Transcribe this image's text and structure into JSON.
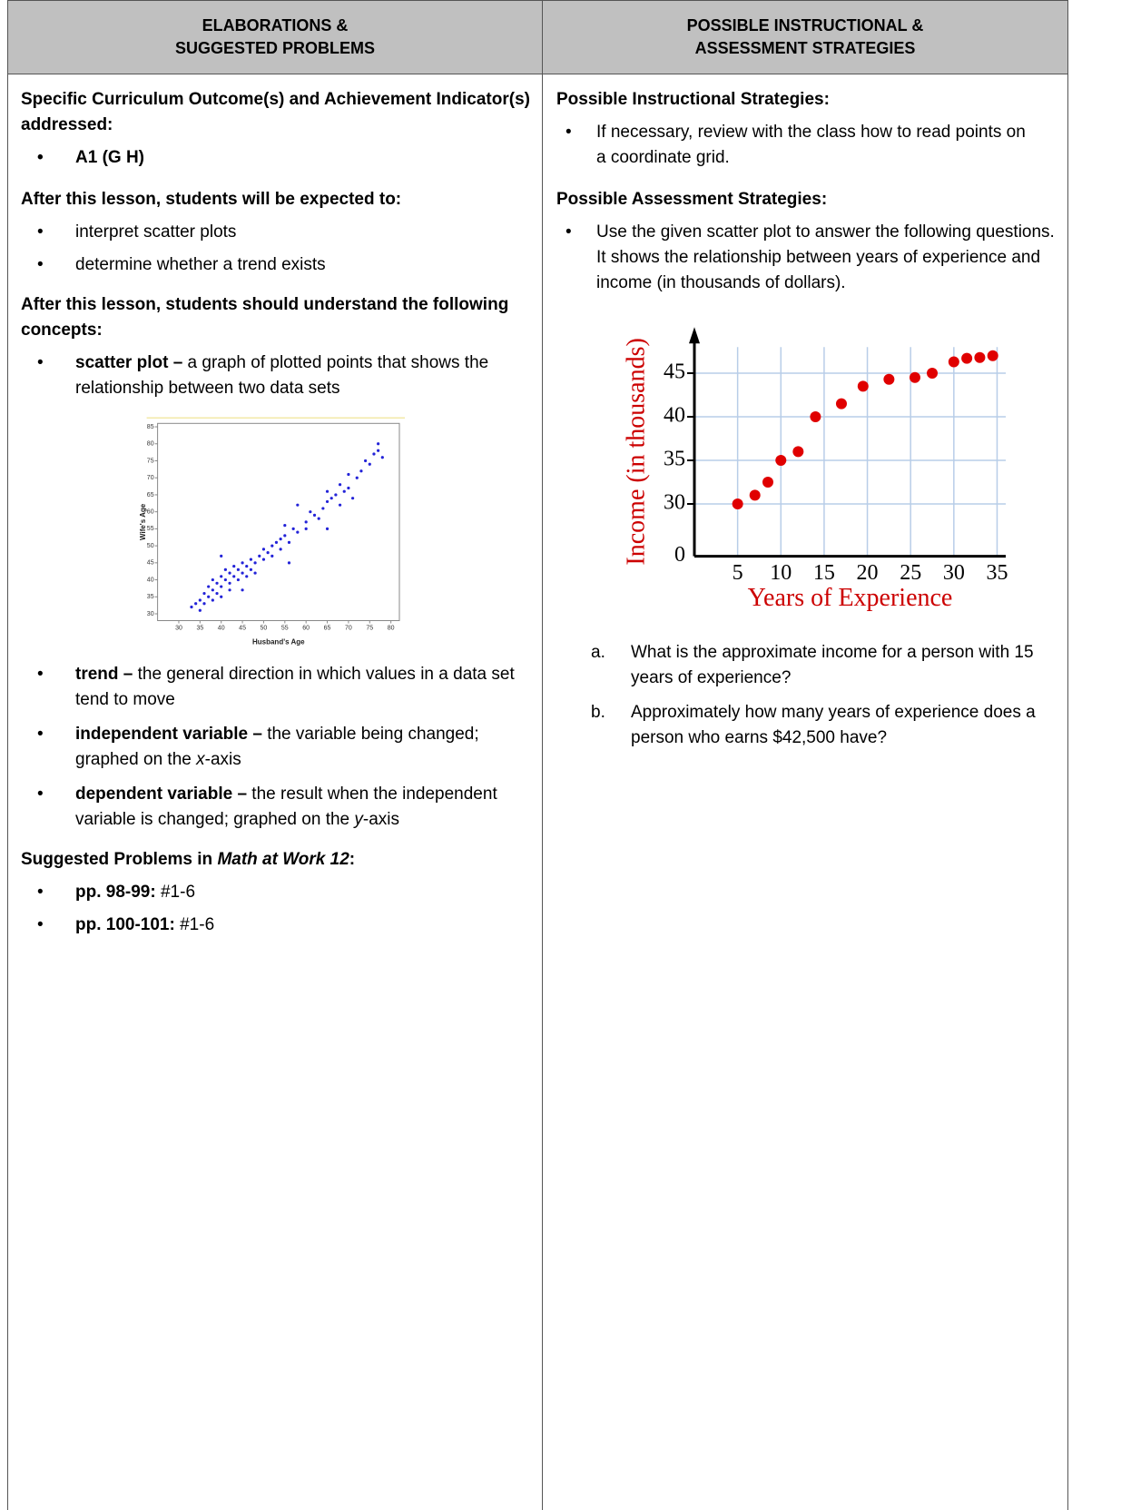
{
  "header": {
    "left": [
      "ELABORATIONS &",
      "SUGGESTED PROBLEMS"
    ],
    "right": [
      "POSSIBLE INSTRUCTIONAL &",
      "ASSESSMENT STRATEGIES"
    ]
  },
  "left": {
    "outcomes_heading": "Specific Curriculum Outcome(s) and Achievement Indicator(s) addressed:",
    "outcomes": [
      "A1  (G H)"
    ],
    "expected_heading": "After this lesson, students will be expected to:",
    "expected": [
      "interpret scatter plots",
      "determine whether a trend exists"
    ],
    "concepts_heading": "After this lesson, students should understand the following concepts:",
    "concepts": [
      {
        "term": "scatter plot –",
        "text": "a graph of plotted points that shows the relationship between two data sets"
      },
      {
        "term": "trend –",
        "text": "the general direction in which values in a data set tend to move"
      },
      {
        "term": "independent variable –",
        "text": "the variable being changed; graphed on the ",
        "em": "x",
        "rest": "-axis"
      },
      {
        "term": "dependent variable –",
        "text": "the result when the independent variable is changed; graphed on the ",
        "em": "y",
        "rest": "-axis"
      }
    ],
    "problems_heading": {
      "pre": "Suggested Problems in ",
      "book": "Math at Work 12",
      "post": ":"
    },
    "problems": [
      {
        "pages": "pp. 98-99:",
        "items": "#1-6"
      },
      {
        "pages": "pp. 100-101:",
        "items": "#1-6"
      }
    ]
  },
  "right": {
    "instructional_heading": "Possible Instructional Strategies:",
    "instructional": [
      "If necessary, review with the class how to read points on a coordinate grid."
    ],
    "assessment_heading": "Possible Assessment Strategies:",
    "assessment": [
      "Use the given scatter plot to answer the following questions.  It shows the relationship between years of experience and income (in thousands of dollars)."
    ],
    "questions": [
      {
        "letter": "a.",
        "text": "What is the approximate income for a person with 15 years of experience?"
      },
      {
        "letter": "b.",
        "text": "Approximately how many years of experience does a person who earns $42,500 have?"
      }
    ]
  },
  "chart_data": [
    {
      "type": "scatter",
      "x_label": "Husband's Age",
      "y_label": "Wife's Age",
      "color": "#2323d8",
      "x": [
        33,
        34,
        35,
        35,
        36,
        36,
        37,
        37,
        38,
        38,
        38,
        39,
        39,
        40,
        40,
        40,
        41,
        41,
        42,
        42,
        42,
        43,
        43,
        44,
        44,
        45,
        45,
        46,
        46,
        47,
        47,
        48,
        48,
        49,
        50,
        50,
        51,
        52,
        52,
        53,
        54,
        54,
        55,
        55,
        56,
        57,
        58,
        58,
        60,
        60,
        61,
        62,
        63,
        64,
        65,
        65,
        66,
        67,
        68,
        68,
        69,
        70,
        70,
        71,
        72,
        73,
        74,
        75,
        76,
        77,
        77,
        78,
        56,
        45,
        40,
        65
      ],
      "values": [
        32,
        33,
        31,
        34,
        33,
        36,
        35,
        38,
        34,
        37,
        40,
        36,
        39,
        38,
        41,
        35,
        40,
        43,
        39,
        42,
        37,
        41,
        44,
        40,
        43,
        42,
        45,
        44,
        41,
        43,
        46,
        45,
        42,
        47,
        46,
        49,
        48,
        50,
        47,
        51,
        52,
        49,
        53,
        56,
        51,
        55,
        62,
        54,
        57,
        55,
        60,
        59,
        58,
        61,
        63,
        66,
        64,
        65,
        62,
        68,
        66,
        67,
        71,
        64,
        70,
        72,
        75,
        74,
        77,
        80,
        78,
        76,
        45,
        37,
        47,
        55
      ],
      "xlim": [
        25,
        82
      ],
      "ylim": [
        28,
        86
      ],
      "xticks": [
        30,
        35,
        40,
        45,
        50,
        55,
        60,
        65,
        70,
        75,
        80
      ],
      "yticks": [
        30,
        35,
        40,
        45,
        50,
        55,
        60,
        65,
        70,
        75,
        80,
        85
      ],
      "grid": false
    },
    {
      "type": "scatter",
      "x_label": "Years of Experience",
      "y_label": "Income (in thousands)",
      "origin_label": "0",
      "color": "#e00000",
      "x": [
        5,
        7,
        8.5,
        10,
        12,
        14,
        17,
        19.5,
        22.5,
        25.5,
        27.5,
        30,
        31.5,
        33,
        34.5
      ],
      "values": [
        30,
        31,
        32.5,
        35,
        36,
        40,
        41.5,
        43.5,
        44.3,
        44.5,
        45,
        46.3,
        46.7,
        46.8,
        47
      ],
      "xlim": [
        0,
        36
      ],
      "ylim": [
        24,
        48
      ],
      "xticks": [
        5,
        10,
        15,
        20,
        25,
        30,
        35
      ],
      "yticks": [
        30,
        35,
        40,
        45
      ],
      "grid": true
    }
  ]
}
